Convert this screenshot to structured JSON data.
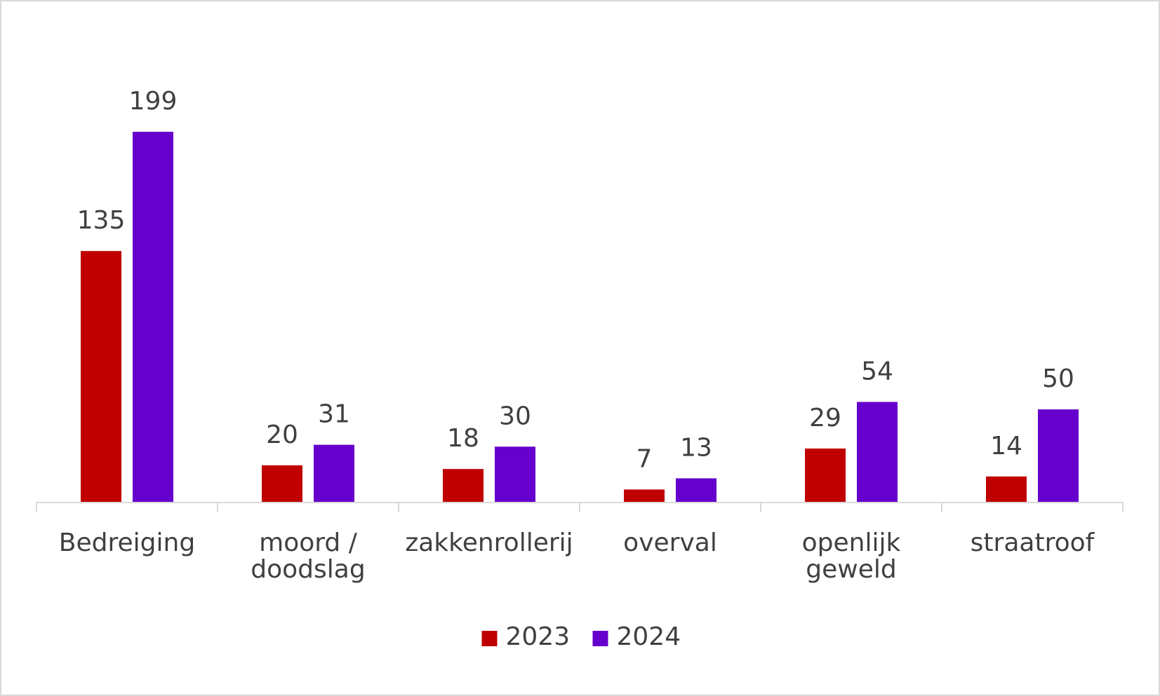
{
  "chart_data": {
    "type": "bar",
    "title": "",
    "xlabel": "",
    "ylabel": "",
    "categories": [
      [
        "Bedreiging"
      ],
      [
        "moord /",
        "doodslag"
      ],
      [
        "zakkenrollerij"
      ],
      [
        "overval"
      ],
      [
        "openlijk",
        "geweld"
      ],
      [
        "straatroof"
      ]
    ],
    "series": [
      {
        "name": "2023",
        "color": "#c00000",
        "values": [
          135,
          20,
          18,
          7,
          29,
          14
        ]
      },
      {
        "name": "2024",
        "color": "#6600cc",
        "values": [
          199,
          31,
          30,
          13,
          54,
          50
        ]
      }
    ],
    "ylim": [
      0,
      199
    ],
    "grid": false,
    "legend": "bottom-center",
    "data_labels": true
  }
}
